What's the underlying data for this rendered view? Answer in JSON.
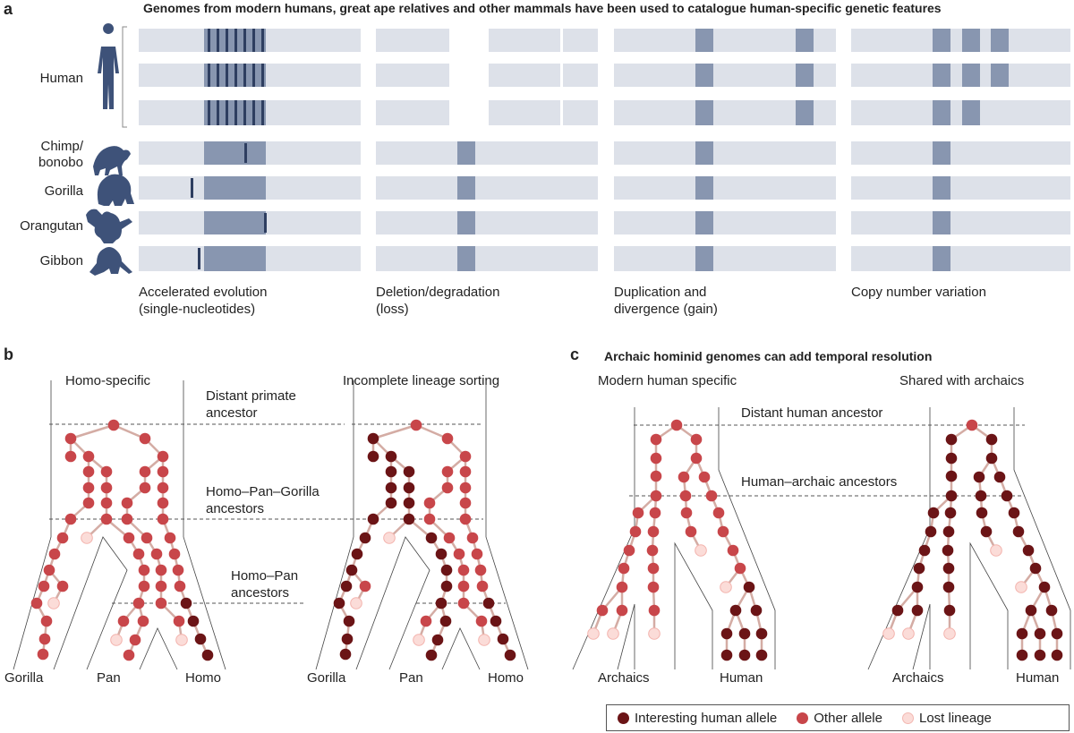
{
  "panel_a": {
    "letter": "a",
    "title": "Genomes from modern humans, great ape relatives and other mammals have been used to catalogue human-specific genetic features",
    "species": [
      "Human",
      "Chimp/\nbonobo",
      "Gorilla",
      "Orangutan",
      "Gibbon"
    ],
    "columns": [
      "Accelerated evolution\n(single-nucleotides)",
      "Deletion/degradation\n(loss)",
      "Duplication and\ndivergence (gain)",
      "Copy number variation"
    ]
  },
  "panel_b": {
    "letter": "b",
    "tree_titles": [
      "Homo-specific",
      "Incomplete lineage sorting"
    ],
    "ancestors": [
      "Distant primate\nancestor",
      "Homo–Pan–Gorilla\nancestors",
      "Homo–Pan\nancestors"
    ],
    "tips": [
      "Gorilla",
      "Pan",
      "Homo"
    ]
  },
  "panel_c": {
    "letter": "c",
    "title": "Archaic hominid genomes can add temporal resolution",
    "tree_titles": [
      "Modern human specific",
      "Shared with archaics"
    ],
    "ancestors": [
      "Distant human ancestor",
      "Human–archaic ancestors"
    ],
    "tips": [
      "Archaics",
      "Human"
    ]
  },
  "legend": {
    "items": [
      {
        "label": "Interesting human allele",
        "color": "#6b1416"
      },
      {
        "label": "Other allele",
        "color": "#c8464a"
      },
      {
        "label": "Lost lineage",
        "color": "#fbdcd8"
      }
    ]
  },
  "colors": {
    "bar": "#dde1e9",
    "block": "#8896b0",
    "mark": "#2e3e60",
    "silhouette": "#3e5279",
    "edge": "#d4aca4"
  }
}
